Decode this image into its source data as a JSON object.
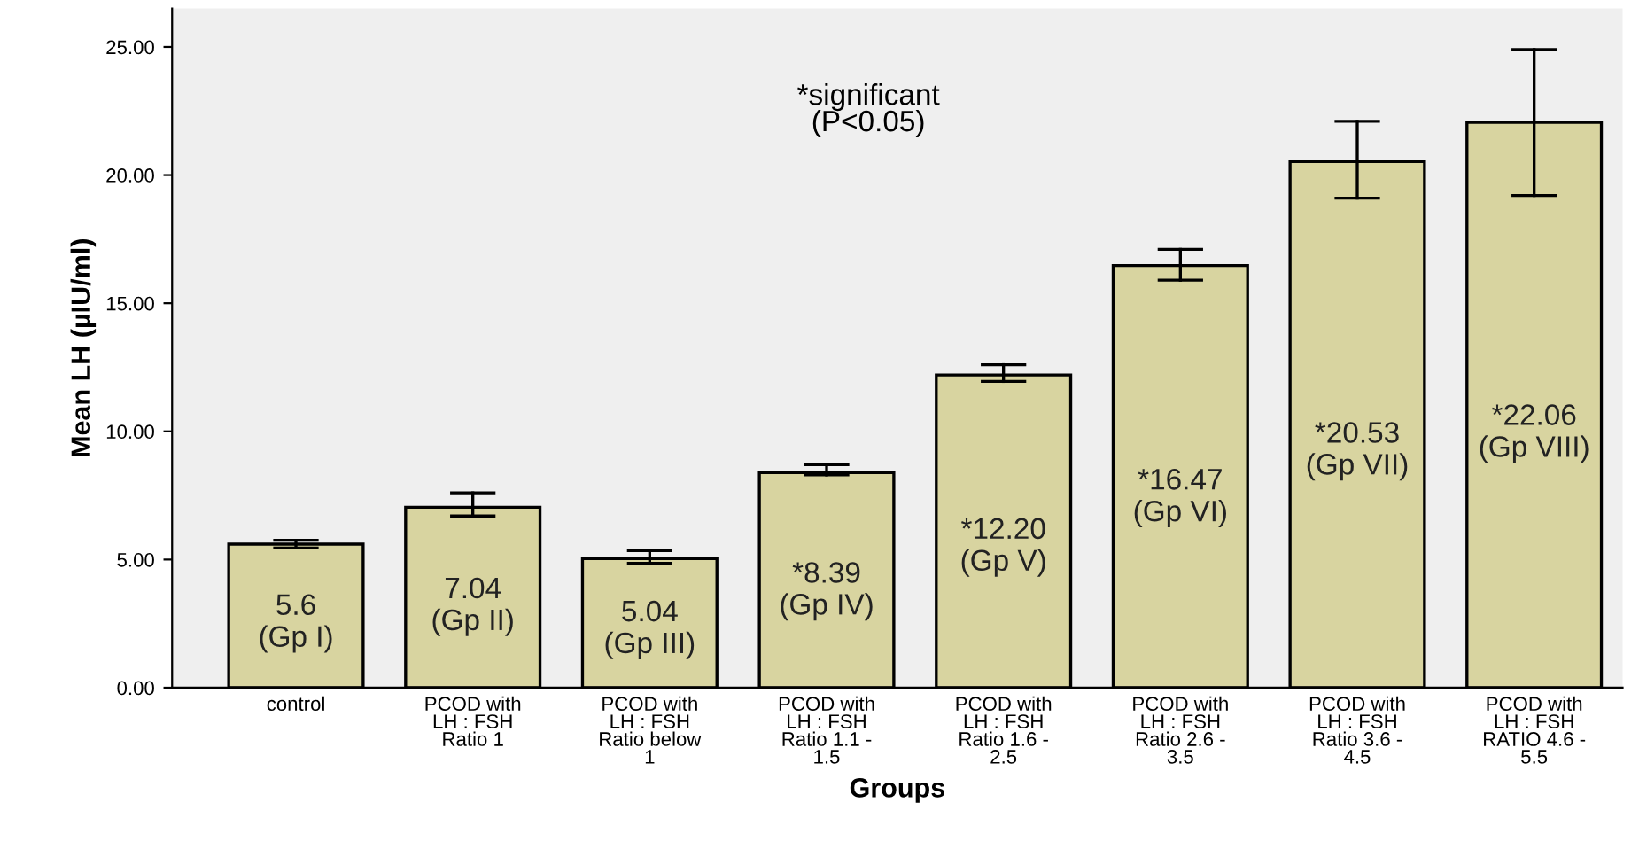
{
  "chart_data": {
    "type": "bar",
    "xlabel": "Groups",
    "ylabel": "Mean LH (µIU/ml)",
    "categories": [
      "control",
      "PCOD with\nLH : FSH\nRatio 1",
      "PCOD with\nLH : FSH\nRatio below\n1",
      "PCOD with\nLH : FSH\nRatio 1.1 -\n1.5",
      "PCOD with\nLH : FSH\nRatio 1.6 -\n2.5",
      "PCOD with\nLH : FSH\nRatio 2.6 -\n3.5",
      "PCOD with\nLH : FSH\nRatio 3.6 -\n4.5",
      "PCOD with\nLH : FSH\nRATIO 4.6 -\n5.5"
    ],
    "values": [
      5.6,
      7.04,
      5.04,
      8.39,
      12.2,
      16.47,
      20.53,
      22.06
    ],
    "errors": [
      [
        5.45,
        5.75
      ],
      [
        6.7,
        7.6
      ],
      [
        4.85,
        5.35
      ],
      [
        8.3,
        8.7
      ],
      [
        11.95,
        12.6
      ],
      [
        15.9,
        17.1
      ],
      [
        19.1,
        22.1
      ],
      [
        19.2,
        24.9
      ]
    ],
    "value_labels": [
      "5.6\n(Gp I)",
      "7.04\n(Gp II)",
      "5.04\n(Gp III)",
      "*8.39\n(Gp IV)",
      "*12.20\n(Gp V)",
      "*16.47\n(Gp VI)",
      "*20.53\n(Gp VII)",
      "*22.06\n(Gp VIII)"
    ],
    "color": "#d8d4a0",
    "ylim": [
      0,
      26.5
    ],
    "yticks": [
      {
        "value": 0,
        "label": "0.00"
      },
      {
        "value": 5,
        "label": "5.00"
      },
      {
        "value": 10,
        "label": "10.00"
      },
      {
        "value": 15,
        "label": "15.00"
      },
      {
        "value": 20,
        "label": "20.00"
      },
      {
        "value": 25,
        "label": "25.00"
      }
    ],
    "annotations": [
      "*significant\n(P<0.05)"
    ],
    "grid": false,
    "legend": false
  }
}
